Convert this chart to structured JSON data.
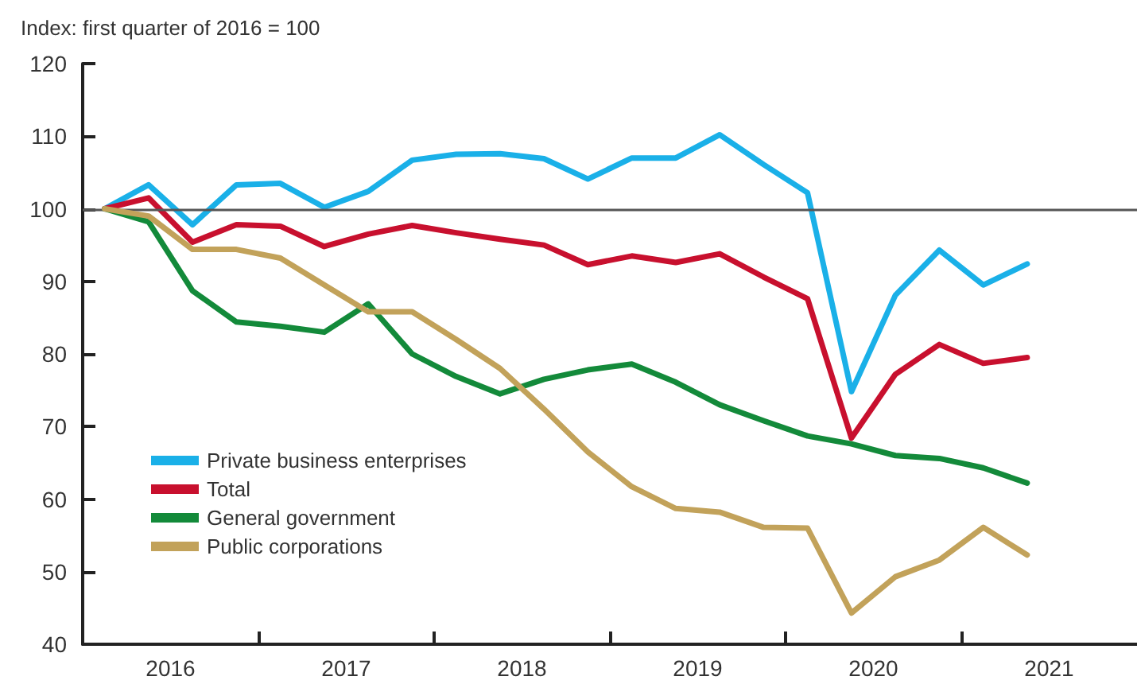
{
  "chart_data": {
    "type": "line",
    "subtitle": "Index: first quarter of 2016 = 100",
    "x": [
      2016.125,
      2016.375,
      2016.625,
      2016.875,
      2017.125,
      2017.375,
      2017.625,
      2017.875,
      2018.125,
      2018.375,
      2018.625,
      2018.875,
      2019.125,
      2019.375,
      2019.625,
      2019.875,
      2020.125,
      2020.375,
      2020.625,
      2020.875,
      2021.125,
      2021.375
    ],
    "xlim": [
      2016,
      2022
    ],
    "xticks": [
      {
        "value": 2016.5,
        "label": "2016"
      },
      {
        "value": 2017,
        "label": null
      },
      {
        "value": 2017.5,
        "label": "2017"
      },
      {
        "value": 2018,
        "label": null
      },
      {
        "value": 2018.5,
        "label": "2018"
      },
      {
        "value": 2019,
        "label": null
      },
      {
        "value": 2019.5,
        "label": "2019"
      },
      {
        "value": 2020,
        "label": null
      },
      {
        "value": 2020.5,
        "label": "2020"
      },
      {
        "value": 2021,
        "label": null
      },
      {
        "value": 2021.5,
        "label": "2021"
      }
    ],
    "ylim": [
      40,
      120
    ],
    "yticks": [
      40,
      50,
      60,
      70,
      80,
      90,
      100,
      110,
      120
    ],
    "series": [
      {
        "name": "Private business enterprises",
        "color": "#1ab0e8",
        "values": [
          100,
          103.3,
          97.8,
          103.3,
          103.5,
          100.2,
          102.4,
          106.7,
          107.5,
          107.6,
          106.9,
          104.1,
          107.0,
          107.0,
          110.2,
          106.1,
          102.2,
          74.8,
          88.1,
          94.3,
          89.5,
          92.4
        ]
      },
      {
        "name": "Total",
        "color": "#c8102e",
        "values": [
          100,
          101.5,
          95.4,
          97.8,
          97.6,
          94.8,
          96.5,
          97.7,
          96.7,
          95.8,
          95.0,
          92.3,
          93.5,
          92.6,
          93.8,
          90.6,
          87.6,
          68.4,
          77.2,
          81.3,
          78.7,
          79.5
        ]
      },
      {
        "name": "General government",
        "color": "#138a3a",
        "values": [
          100,
          98.2,
          88.7,
          84.4,
          83.8,
          83.0,
          86.9,
          80.0,
          76.9,
          74.5,
          76.5,
          77.8,
          78.6,
          76.1,
          73.0,
          70.8,
          68.7,
          67.6,
          66.0,
          65.6,
          64.3,
          62.2
        ]
      },
      {
        "name": "Public corporations",
        "color": "#c2a25a",
        "values": [
          100,
          99.0,
          94.4,
          94.4,
          93.2,
          89.5,
          85.8,
          85.8,
          82.0,
          78.0,
          72.4,
          66.5,
          61.7,
          58.7,
          58.2,
          56.1,
          56.0,
          44.3,
          49.3,
          51.6,
          56.1,
          52.3
        ]
      }
    ],
    "ref_lines": [
      {
        "axis": "y",
        "value": 100,
        "color": "#555555"
      }
    ],
    "grid": false,
    "legend": "bottom left",
    "marker": "none",
    "line_style": "solid"
  }
}
